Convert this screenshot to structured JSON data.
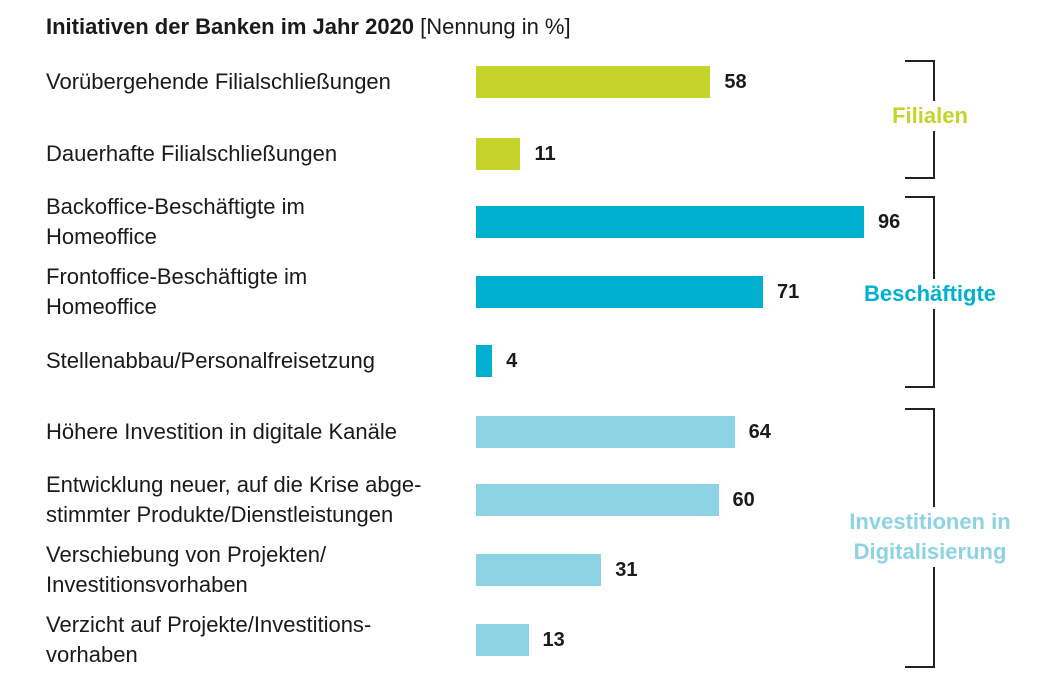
{
  "chart_data": {
    "type": "bar",
    "orientation": "horizontal",
    "title": "Initiativen der Banken im Jahr 2020",
    "subtitle": "[Nennung in %]",
    "categories": [
      "Vorübergehende Filialschließungen",
      "Dauerhafte Filialschließungen",
      "Backoffice-Beschäftigte im\nHomeoffice",
      "Frontoffice-Beschäftigte im\nHomeoffice",
      "Stellenabbau/Personalfreisetzung",
      "Höhere Investition in digitale Kanäle",
      "Entwicklung neuer, auf die Krise abge-\nstimmter Produkte/Dienstleistungen",
      "Verschiebung von Projekten/\nInvestitionsvorhaben",
      "Verzicht auf Projekte/Investitions-\nvorhaben"
    ],
    "values": [
      58,
      11,
      96,
      71,
      4,
      64,
      60,
      31,
      13
    ],
    "value_labels": [
      "58",
      "11",
      "96",
      "71",
      "4",
      "64",
      "60",
      "31",
      "13"
    ],
    "groups": [
      {
        "name": "Filialen",
        "start": 0,
        "end": 1,
        "color": "#c5d42a"
      },
      {
        "name": "Beschäftigte",
        "start": 2,
        "end": 4,
        "color": "#00b0d0"
      },
      {
        "name": "Investitionen in\nDigitalisierung",
        "start": 5,
        "end": 8,
        "color": "#8dd3e4"
      }
    ],
    "xlim": [
      0,
      100
    ],
    "grid": false,
    "legend": "right-brackets"
  }
}
